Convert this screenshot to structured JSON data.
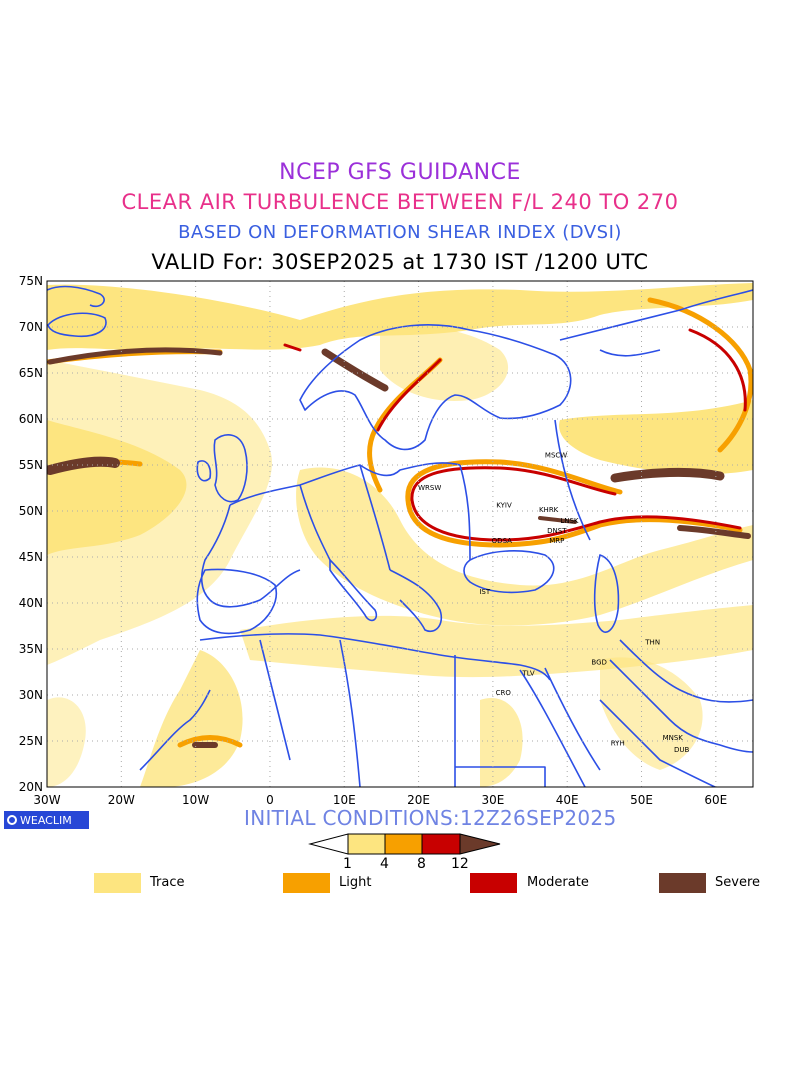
{
  "titles": {
    "line1": "NCEP GFS GUIDANCE",
    "line2": "CLEAR AIR TURBULENCE BETWEEN F/L 240 TO 270",
    "line3": "BASED ON DEFORMATION SHEAR INDEX (DVSI)",
    "line4": "VALID For: 30SEP2025 at 1730 IST /1200 UTC"
  },
  "map": {
    "lon_range": [
      -30,
      65
    ],
    "lat_range": [
      20,
      75
    ],
    "lon_labels": [
      "30W",
      "20W",
      "10W",
      "0",
      "10E",
      "20E",
      "30E",
      "40E",
      "50E",
      "60E"
    ],
    "lat_labels": [
      "75N",
      "70N",
      "65N",
      "60N",
      "55N",
      "50N",
      "45N",
      "40N",
      "35N",
      "30N",
      "25N",
      "20N"
    ],
    "grid": "dotted",
    "cities": [
      {
        "name": "MSCW",
        "lon": 38.5,
        "lat": 55.8
      },
      {
        "name": "WRSW",
        "lon": 21.5,
        "lat": 52.3
      },
      {
        "name": "KYIV",
        "lon": 31.5,
        "lat": 50.4
      },
      {
        "name": "KHRK",
        "lon": 37.5,
        "lat": 49.9
      },
      {
        "name": "DNST",
        "lon": 38.6,
        "lat": 47.6
      },
      {
        "name": "LNSK",
        "lon": 40.3,
        "lat": 48.7
      },
      {
        "name": "ODSA",
        "lon": 31.2,
        "lat": 46.5
      },
      {
        "name": "MRP",
        "lon": 38.6,
        "lat": 46.5
      },
      {
        "name": "IST",
        "lon": 28.9,
        "lat": 41.0
      },
      {
        "name": "THN",
        "lon": 51.5,
        "lat": 35.5
      },
      {
        "name": "BGD",
        "lon": 44.3,
        "lat": 33.3
      },
      {
        "name": "TLV",
        "lon": 34.8,
        "lat": 32.1
      },
      {
        "name": "CRO",
        "lon": 31.4,
        "lat": 30.0
      },
      {
        "name": "MNSK",
        "lon": 54.2,
        "lat": 25.1
      },
      {
        "name": "DUB",
        "lon": 55.4,
        "lat": 23.8
      },
      {
        "name": "RYH",
        "lon": 46.8,
        "lat": 24.5
      }
    ]
  },
  "logo": {
    "label": "WEACLIM"
  },
  "initial_conditions": "INITIAL CONDITIONS:12Z26SEP2025",
  "colorbar": {
    "ticks": [
      "1",
      "4",
      "8",
      "12"
    ],
    "colors": [
      "#ffffff",
      "#fde580",
      "#f7a000",
      "#c80000",
      "#6b3a2a"
    ]
  },
  "legend": [
    {
      "label": "Trace",
      "color": "#fde580"
    },
    {
      "label": "Light",
      "color": "#f7a000"
    },
    {
      "label": "Moderate",
      "color": "#c80000"
    },
    {
      "label": "Severe",
      "color": "#6b3a2a"
    }
  ]
}
